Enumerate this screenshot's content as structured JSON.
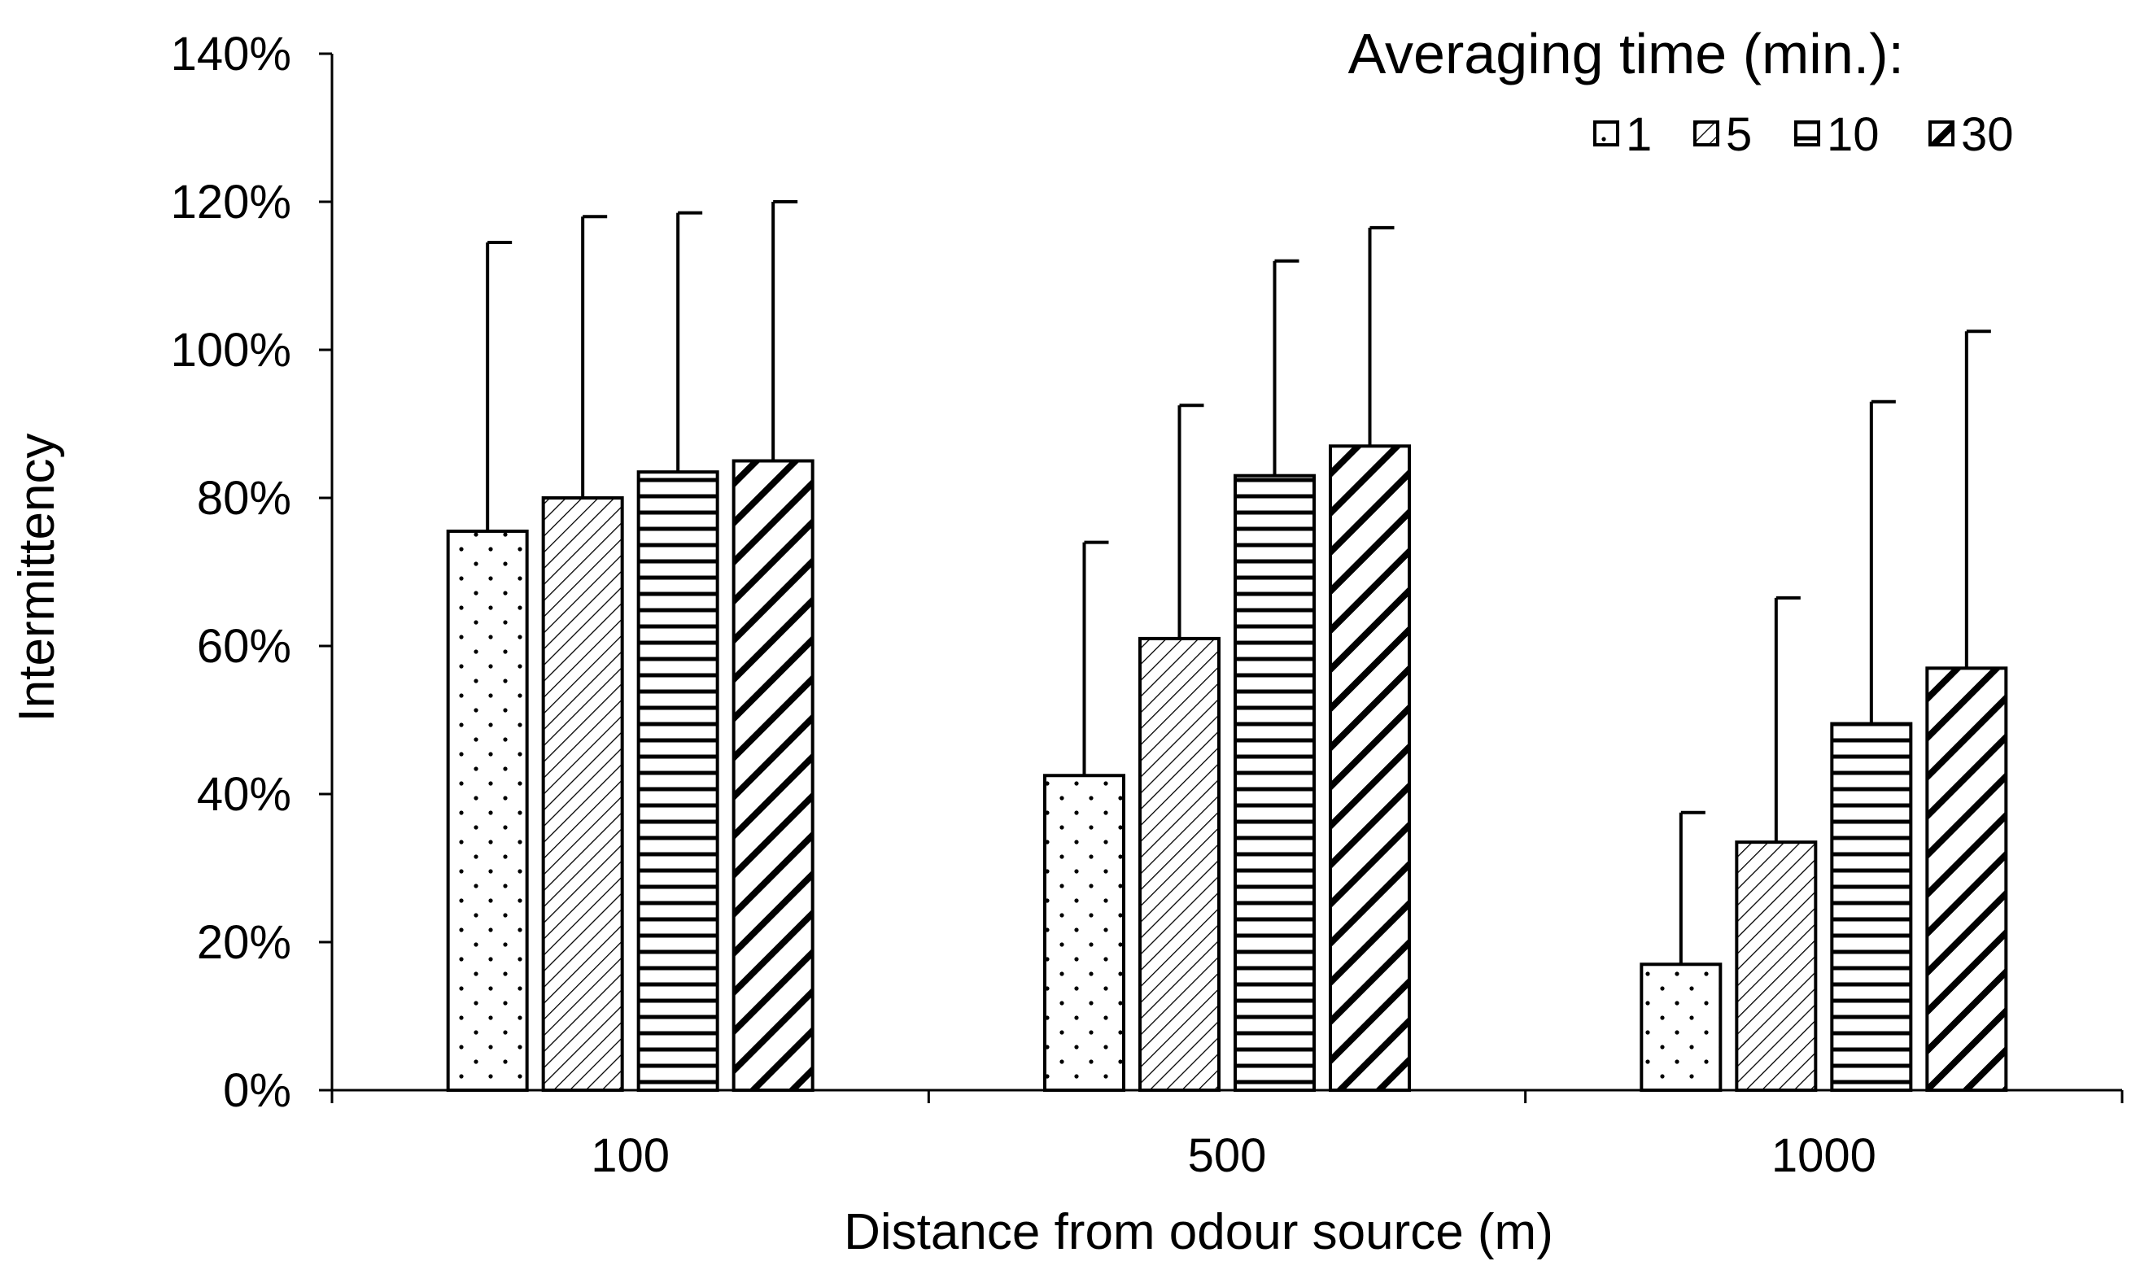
{
  "chart_data": {
    "type": "bar",
    "title": "",
    "xlabel": "Distance from odour source (m)",
    "ylabel": "Intermittency",
    "categories": [
      "100",
      "500",
      "1000"
    ],
    "ylim": [
      0,
      140
    ],
    "yticks": [
      "0%",
      "20%",
      "40%",
      "60%",
      "80%",
      "100%",
      "120%",
      "140%"
    ],
    "ytick_values": [
      0,
      20,
      40,
      60,
      80,
      100,
      120,
      140
    ],
    "grid": false,
    "legend": {
      "title": "Averaging time (min.):",
      "position": "top-right"
    },
    "series": [
      {
        "name": "1",
        "pattern": "dots",
        "values": [
          75.5,
          42.5,
          17.0
        ],
        "error_upper": [
          114.5,
          74.0,
          37.5
        ]
      },
      {
        "name": "5",
        "pattern": "fine-diagonal",
        "values": [
          80.0,
          61.0,
          33.5
        ],
        "error_upper": [
          118.0,
          92.5,
          66.5
        ]
      },
      {
        "name": "10",
        "pattern": "horizontal",
        "values": [
          83.5,
          83.0,
          49.5
        ],
        "error_upper": [
          118.5,
          112.0,
          93.0
        ]
      },
      {
        "name": "30",
        "pattern": "bold-diagonal",
        "values": [
          85.0,
          87.0,
          57.0
        ],
        "error_upper": [
          120.0,
          116.5,
          102.5
        ]
      }
    ]
  }
}
